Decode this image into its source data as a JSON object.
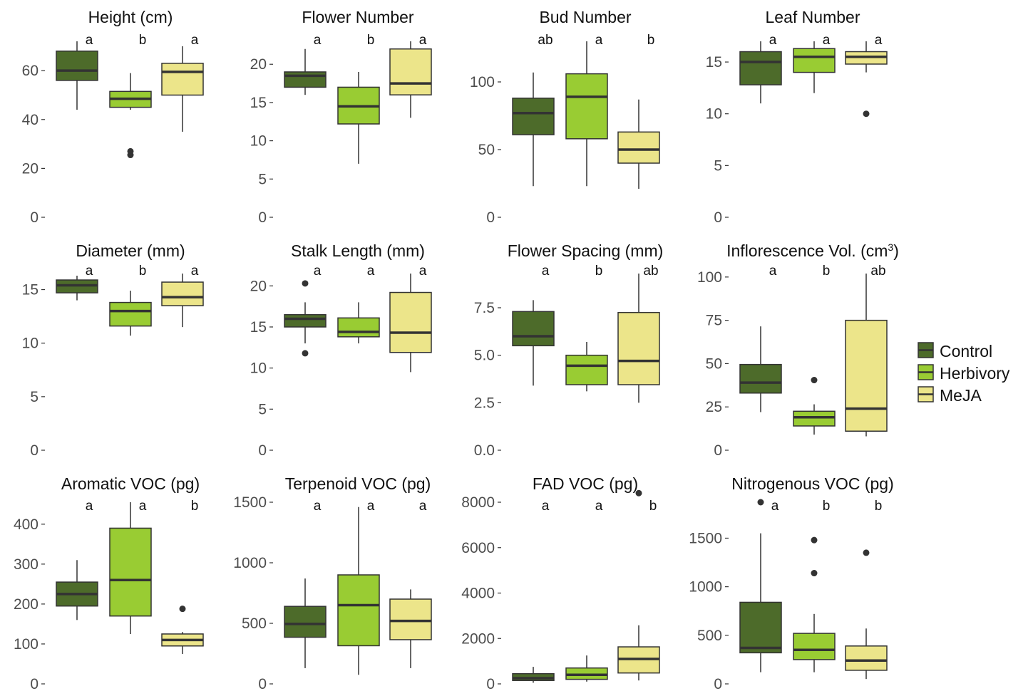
{
  "chart_data": [
    {
      "type": "box",
      "title": "Height (cm)",
      "title_sup": "",
      "ylim": [
        0,
        72
      ],
      "ticks": [
        0,
        20,
        40,
        60
      ],
      "groups": [
        {
          "name": "Control",
          "whisker_low": 44,
          "q1": 56,
          "median": 60,
          "q3": 68,
          "whisker_high": 72,
          "outliers": [],
          "letter": "a"
        },
        {
          "name": "Herbivory",
          "whisker_low": 44,
          "q1": 45,
          "median": 48.5,
          "q3": 51.5,
          "whisker_high": 59,
          "outliers": [
            27,
            25.5
          ],
          "letter": "b"
        },
        {
          "name": "MeJA",
          "whisker_low": 35,
          "q1": 50,
          "median": 59.5,
          "q3": 63,
          "whisker_high": 70,
          "outliers": [],
          "letter": "a"
        }
      ]
    },
    {
      "type": "box",
      "title": "Flower Number",
      "title_sup": "",
      "ylim": [
        0,
        23
      ],
      "ticks": [
        0,
        5,
        10,
        15,
        20
      ],
      "groups": [
        {
          "name": "Control",
          "whisker_low": 16,
          "q1": 17,
          "median": 18.5,
          "q3": 19,
          "whisker_high": 22,
          "outliers": [],
          "letter": "a"
        },
        {
          "name": "Herbivory",
          "whisker_low": 7,
          "q1": 12.2,
          "median": 14.5,
          "q3": 17,
          "whisker_high": 19,
          "outliers": [],
          "letter": "b"
        },
        {
          "name": "MeJA",
          "whisker_low": 13,
          "q1": 16,
          "median": 17.5,
          "q3": 22,
          "whisker_high": 23,
          "outliers": [],
          "letter": "a"
        }
      ]
    },
    {
      "type": "box",
      "title": "Bud Number",
      "title_sup": "",
      "ylim": [
        0,
        130
      ],
      "ticks": [
        0,
        50,
        100
      ],
      "groups": [
        {
          "name": "Control",
          "whisker_low": 23,
          "q1": 61,
          "median": 77,
          "q3": 88,
          "whisker_high": 107,
          "outliers": [],
          "letter": "ab"
        },
        {
          "name": "Herbivory",
          "whisker_low": 23,
          "q1": 58,
          "median": 89,
          "q3": 106,
          "whisker_high": 130,
          "outliers": [],
          "letter": "a"
        },
        {
          "name": "MeJA",
          "whisker_low": 21,
          "q1": 40,
          "median": 50,
          "q3": 63,
          "whisker_high": 87,
          "outliers": [],
          "letter": "b"
        }
      ]
    },
    {
      "type": "box",
      "title": "Leaf Number",
      "title_sup": "",
      "ylim": [
        0,
        17
      ],
      "ticks": [
        0,
        5,
        10,
        15
      ],
      "groups": [
        {
          "name": "Control",
          "whisker_low": 11,
          "q1": 12.8,
          "median": 15,
          "q3": 16,
          "whisker_high": 17,
          "outliers": [],
          "letter": "a"
        },
        {
          "name": "Herbivory",
          "whisker_low": 12,
          "q1": 14,
          "median": 15.5,
          "q3": 16.3,
          "whisker_high": 17,
          "outliers": [],
          "letter": "a"
        },
        {
          "name": "MeJA",
          "whisker_low": 14,
          "q1": 14.8,
          "median": 15.5,
          "q3": 16,
          "whisker_high": 17,
          "outliers": [
            10
          ],
          "letter": "a"
        }
      ]
    },
    {
      "type": "box",
      "title": "Diameter (mm)",
      "title_sup": "",
      "ylim": [
        0,
        16.5
      ],
      "ticks": [
        0,
        5,
        10,
        15
      ],
      "groups": [
        {
          "name": "Control",
          "whisker_low": 14,
          "q1": 14.7,
          "median": 15.4,
          "q3": 15.9,
          "whisker_high": 16.3,
          "outliers": [],
          "letter": "a"
        },
        {
          "name": "Herbivory",
          "whisker_low": 10.7,
          "q1": 11.6,
          "median": 13,
          "q3": 13.8,
          "whisker_high": 14.9,
          "outliers": [],
          "letter": "b"
        },
        {
          "name": "MeJA",
          "whisker_low": 11.5,
          "q1": 13.5,
          "median": 14.3,
          "q3": 15.7,
          "whisker_high": 16.5,
          "outliers": [],
          "letter": "a"
        }
      ]
    },
    {
      "type": "box",
      "title": "Stalk Length (mm)",
      "title_sup": "",
      "ylim": [
        0,
        21.5
      ],
      "ticks": [
        0,
        5,
        10,
        15,
        20
      ],
      "groups": [
        {
          "name": "Control",
          "whisker_low": 13,
          "q1": 15,
          "median": 16,
          "q3": 16.5,
          "whisker_high": 18,
          "outliers": [
            20.3,
            11.8
          ],
          "letter": "a"
        },
        {
          "name": "Herbivory",
          "whisker_low": 13,
          "q1": 13.8,
          "median": 14.4,
          "q3": 16.1,
          "whisker_high": 18,
          "outliers": [],
          "letter": "a"
        },
        {
          "name": "MeJA",
          "whisker_low": 9.5,
          "q1": 11.9,
          "median": 14.3,
          "q3": 19.2,
          "whisker_high": 21.5,
          "outliers": [],
          "letter": "a"
        }
      ]
    },
    {
      "type": "box",
      "title": "Flower Spacing (mm)",
      "title_sup": "",
      "ylim": [
        0,
        9.3
      ],
      "ticks": [
        0,
        2.5,
        5.0,
        7.5
      ],
      "tick_decimals": 1,
      "groups": [
        {
          "name": "Control",
          "whisker_low": 3.4,
          "q1": 5.5,
          "median": 6,
          "q3": 7.3,
          "whisker_high": 7.9,
          "outliers": [],
          "letter": "a"
        },
        {
          "name": "Herbivory",
          "whisker_low": 3.1,
          "q1": 3.45,
          "median": 4.45,
          "q3": 5,
          "whisker_high": 5.7,
          "outliers": [],
          "letter": "b"
        },
        {
          "name": "MeJA",
          "whisker_low": 2.5,
          "q1": 3.45,
          "median": 4.7,
          "q3": 7.25,
          "whisker_high": 9.3,
          "outliers": [],
          "letter": "ab"
        }
      ]
    },
    {
      "type": "box",
      "title": "Inflorescence Vol. (cm",
      "title_sup": "3",
      "title_end": ")",
      "ylim": [
        0,
        102
      ],
      "ticks": [
        0,
        25,
        50,
        75,
        100
      ],
      "groups": [
        {
          "name": "Control",
          "whisker_low": 22,
          "q1": 33,
          "median": 39,
          "q3": 49.5,
          "whisker_high": 71.5,
          "outliers": [],
          "letter": "a"
        },
        {
          "name": "Herbivory",
          "whisker_low": 9,
          "q1": 14,
          "median": 19,
          "q3": 22.5,
          "whisker_high": 26.5,
          "outliers": [
            40.5
          ],
          "letter": "b"
        },
        {
          "name": "MeJA",
          "whisker_low": 8,
          "q1": 11,
          "median": 24,
          "q3": 75,
          "whisker_high": 102,
          "outliers": [],
          "letter": "ab"
        }
      ]
    },
    {
      "type": "box",
      "title": "Aromatic VOC (pg)",
      "title_sup": "",
      "ylim": [
        0,
        455
      ],
      "ticks": [
        0,
        100,
        200,
        300,
        400
      ],
      "groups": [
        {
          "name": "Control",
          "whisker_low": 160,
          "q1": 195,
          "median": 225,
          "q3": 255,
          "whisker_high": 310,
          "outliers": [],
          "letter": "a"
        },
        {
          "name": "Herbivory",
          "whisker_low": 125,
          "q1": 170,
          "median": 260,
          "q3": 390,
          "whisker_high": 455,
          "outliers": [],
          "letter": "a"
        },
        {
          "name": "MeJA",
          "whisker_low": 75,
          "q1": 95,
          "median": 110,
          "q3": 125,
          "whisker_high": 130,
          "outliers": [
            188
          ],
          "letter": "b"
        }
      ]
    },
    {
      "type": "box",
      "title": "Terpenoid VOC (pg)",
      "title_sup": "",
      "ylim": [
        0,
        1500
      ],
      "ticks": [
        0,
        500,
        1000,
        1500
      ],
      "groups": [
        {
          "name": "Control",
          "whisker_low": 130,
          "q1": 385,
          "median": 495,
          "q3": 640,
          "whisker_high": 870,
          "outliers": [],
          "letter": "a"
        },
        {
          "name": "Herbivory",
          "whisker_low": 75,
          "q1": 315,
          "median": 650,
          "q3": 900,
          "whisker_high": 1460,
          "outliers": [],
          "letter": "a"
        },
        {
          "name": "MeJA",
          "whisker_low": 130,
          "q1": 365,
          "median": 520,
          "q3": 700,
          "whisker_high": 780,
          "outliers": [],
          "letter": "a"
        }
      ]
    },
    {
      "type": "box",
      "title": "FAD VOC (pg)",
      "title_sup": "",
      "ylim": [
        0,
        8000
      ],
      "ticks": [
        0,
        2000,
        4000,
        6000,
        8000
      ],
      "groups": [
        {
          "name": "Control",
          "whisker_low": 50,
          "q1": 150,
          "median": 250,
          "q3": 450,
          "whisker_high": 750,
          "outliers": [],
          "letter": "a"
        },
        {
          "name": "Herbivory",
          "whisker_low": 100,
          "q1": 200,
          "median": 400,
          "q3": 700,
          "whisker_high": 1250,
          "outliers": [],
          "letter": "a"
        },
        {
          "name": "MeJA",
          "whisker_low": 150,
          "q1": 480,
          "median": 1100,
          "q3": 1630,
          "whisker_high": 2580,
          "outliers": [
            8400
          ],
          "letter": "b"
        }
      ]
    },
    {
      "type": "box",
      "title": "Nitrogenous VOC (pg)",
      "title_sup": "",
      "ylim": [
        0,
        1870
      ],
      "ticks": [
        0,
        500,
        1000,
        1500
      ],
      "groups": [
        {
          "name": "Control",
          "whisker_low": 120,
          "q1": 320,
          "median": 370,
          "q3": 840,
          "whisker_high": 1550,
          "outliers": [
            1870
          ],
          "letter": "a"
        },
        {
          "name": "Herbivory",
          "whisker_low": 120,
          "q1": 250,
          "median": 350,
          "q3": 520,
          "whisker_high": 720,
          "outliers": [
            1480,
            1140
          ],
          "letter": "b"
        },
        {
          "name": "MeJA",
          "whisker_low": 50,
          "q1": 140,
          "median": 240,
          "q3": 390,
          "whisker_high": 570,
          "outliers": [
            1350
          ],
          "letter": "b"
        }
      ]
    }
  ],
  "legend": {
    "placement": "right",
    "items": [
      {
        "label": "Control",
        "color": "#4d6b2a"
      },
      {
        "label": "Herbivory",
        "color": "#99cc33"
      },
      {
        "label": "MeJA",
        "color": "#ece58a"
      }
    ]
  },
  "colors": {
    "Control": "#4d6b2a",
    "Herbivory": "#99cc33",
    "MeJA": "#ece58a",
    "line": "#333333"
  }
}
